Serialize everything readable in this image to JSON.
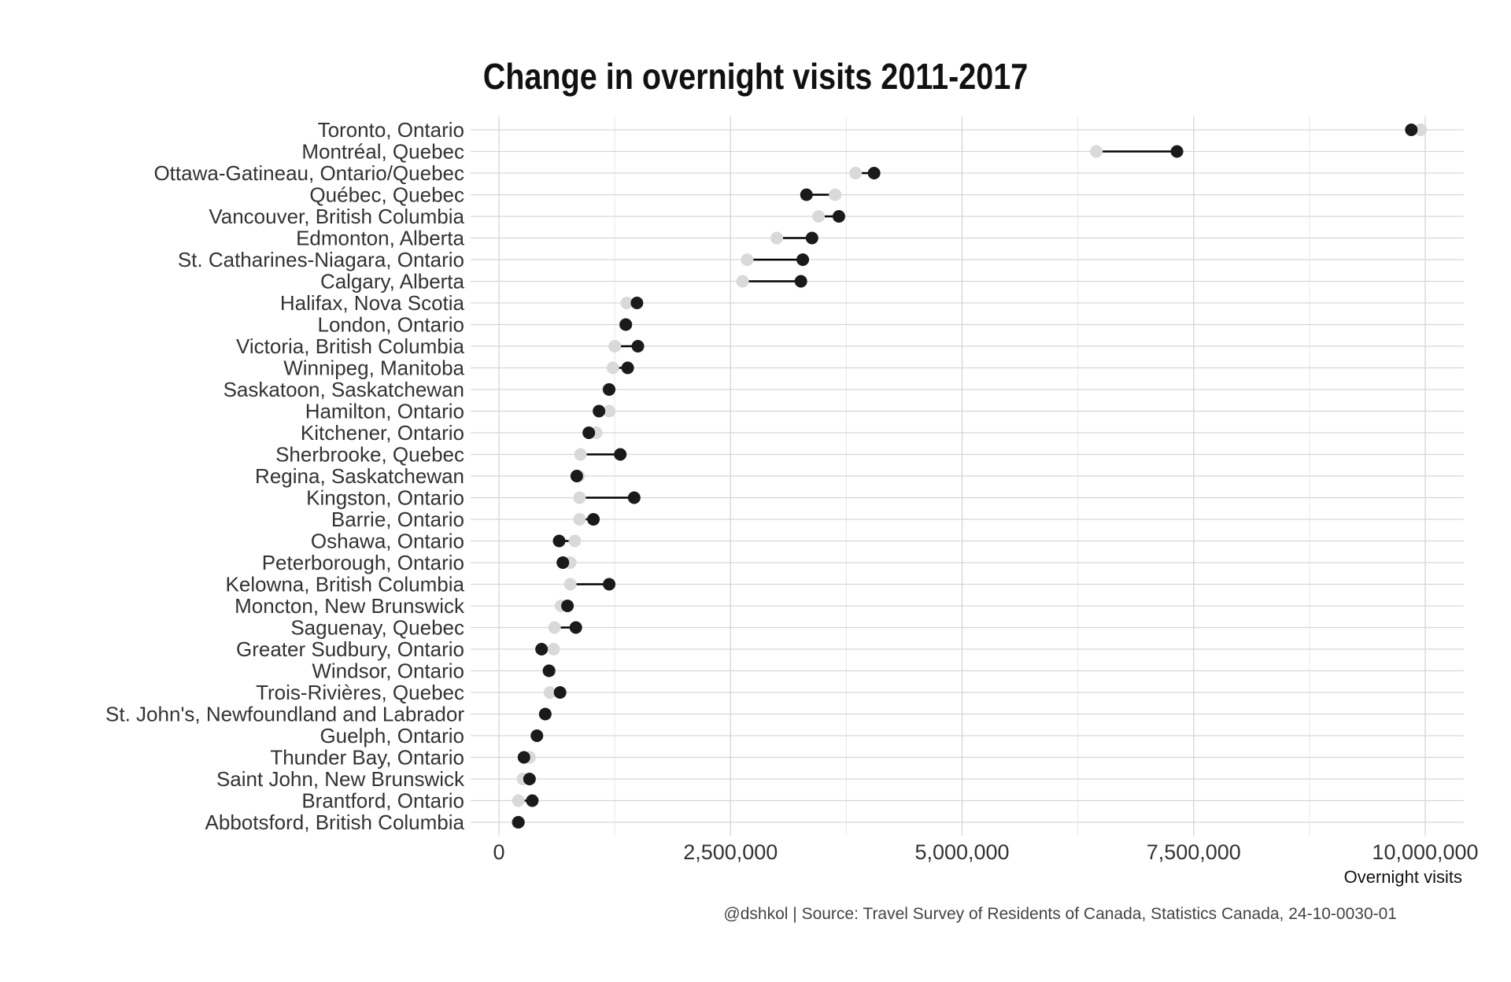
{
  "chart_data": {
    "type": "dumbbell",
    "title": "Change in overnight visits 2011-2017",
    "xlabel": "Overnight visits",
    "caption": "@dshkol | Source: Travel Survey of Residents of Canada, Statistics Canada, 24-10-0030-01",
    "xlim": [
      0,
      10000000
    ],
    "xticks": [
      0,
      2500000,
      5000000,
      7500000,
      10000000
    ],
    "xtick_labels": [
      "0",
      "2,500,000",
      "5,000,000",
      "7,500,000",
      "10,000,000"
    ],
    "grid": true,
    "colors": {
      "start": "#d9d9d9",
      "end": "#1a1a1a",
      "segment": "#000000"
    },
    "categories": [
      "Toronto, Ontario",
      "Montréal, Quebec",
      "Ottawa-Gatineau, Ontario/Quebec",
      "Québec, Quebec",
      "Vancouver, British Columbia",
      "Edmonton, Alberta",
      "St. Catharines-Niagara, Ontario",
      "Calgary, Alberta",
      "Halifax, Nova Scotia",
      "London, Ontario",
      "Victoria, British Columbia",
      "Winnipeg, Manitoba",
      "Saskatoon, Saskatchewan",
      "Hamilton, Ontario",
      "Kitchener, Ontario",
      "Sherbrooke, Quebec",
      "Regina, Saskatchewan",
      "Kingston, Ontario",
      "Barrie, Ontario",
      "Oshawa, Ontario",
      "Peterborough, Ontario",
      "Kelowna, British Columbia",
      "Moncton, New Brunswick",
      "Saguenay, Quebec",
      "Greater Sudbury, Ontario",
      "Windsor, Ontario",
      "Trois-Rivières, Quebec",
      "St. John's, Newfoundland and Labrador",
      "Guelph, Ontario",
      "Thunder Bay, Ontario",
      "Saint John, New Brunswick",
      "Brantford, Ontario",
      "Abbotsford, British Columbia"
    ],
    "series": [
      {
        "values": [
          9950000,
          6450000,
          3850000,
          3630000,
          3450000,
          3000000,
          2680000,
          2630000,
          1380000,
          1360000,
          1250000,
          1230000,
          1180000,
          1190000,
          1050000,
          880000,
          860000,
          870000,
          870000,
          820000,
          770000,
          770000,
          670000,
          600000,
          590000,
          550000,
          550000,
          500000,
          410000,
          330000,
          260000,
          210000,
          200000
        ]
      },
      {
        "values": [
          9850000,
          7320000,
          4050000,
          3320000,
          3670000,
          3380000,
          3280000,
          3260000,
          1490000,
          1370000,
          1500000,
          1390000,
          1190000,
          1080000,
          970000,
          1310000,
          840000,
          1460000,
          1020000,
          650000,
          690000,
          1190000,
          740000,
          830000,
          460000,
          540000,
          660000,
          500000,
          410000,
          270000,
          330000,
          360000,
          210000
        ]
      }
    ]
  }
}
